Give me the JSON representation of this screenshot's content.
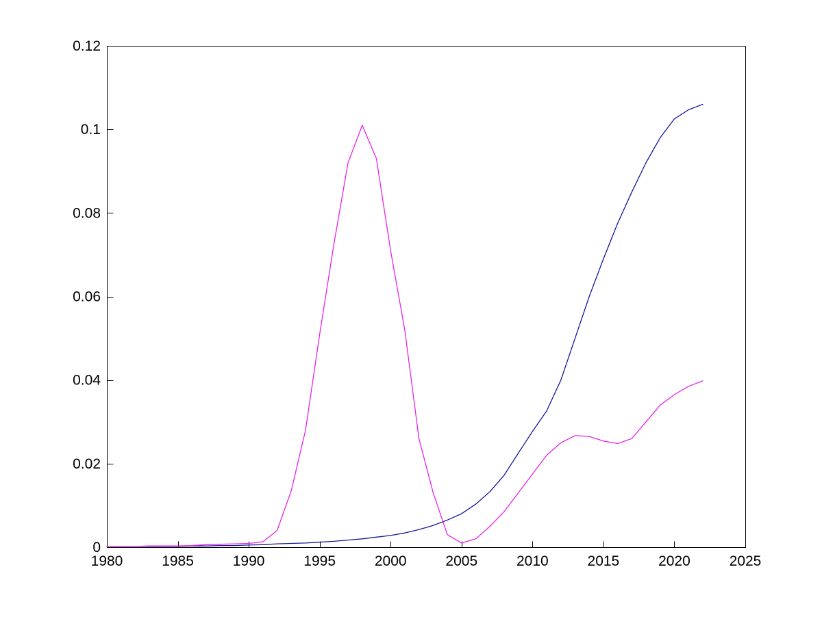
{
  "figure": {
    "background": "#ffffff",
    "plot_background": "#ffffff",
    "axis_color": "#000000",
    "tick_label_color": "#000000"
  },
  "chart_data": {
    "type": "line",
    "title": "",
    "xlabel": "",
    "ylabel": "",
    "grid": false,
    "legend": "none",
    "box": true,
    "tick_direction": "in",
    "xlim": [
      1980,
      2025
    ],
    "ylim": [
      0,
      0.12
    ],
    "x_ticks": [
      1980,
      1985,
      1990,
      1995,
      2000,
      2005,
      2010,
      2015,
      2020,
      2025
    ],
    "x_tick_labels": [
      "1980",
      "1985",
      "1990",
      "1995",
      "2000",
      "2005",
      "2010",
      "2015",
      "2020",
      "2025"
    ],
    "y_ticks": [
      0,
      0.02,
      0.04,
      0.06,
      0.08,
      0.1,
      0.12
    ],
    "y_tick_labels": [
      "0",
      "0.02",
      "0.04",
      "0.06",
      "0.08",
      "0.1",
      "0.12"
    ],
    "x": [
      1980,
      1981,
      1982,
      1983,
      1984,
      1985,
      1986,
      1987,
      1988,
      1989,
      1990,
      1991,
      1992,
      1993,
      1994,
      1995,
      1996,
      1997,
      1998,
      1999,
      2000,
      2001,
      2002,
      2003,
      2004,
      2005,
      2006,
      2007,
      2008,
      2009,
      2010,
      2011,
      2012,
      2013,
      2014,
      2015,
      2016,
      2017,
      2018,
      2019,
      2020,
      2021,
      2022
    ],
    "series": [
      {
        "name": "dark-blue-line",
        "color": "#16169a",
        "values": [
          0.0002,
          0.0002,
          0.0002,
          0.0002,
          0.0002,
          0.0002,
          0.0003,
          0.0003,
          0.0004,
          0.0004,
          0.0005,
          0.0006,
          0.0008,
          0.0009,
          0.001,
          0.0012,
          0.0014,
          0.0017,
          0.002,
          0.0024,
          0.0028,
          0.0034,
          0.0042,
          0.0052,
          0.0065,
          0.008,
          0.0103,
          0.0133,
          0.0172,
          0.0225,
          0.0277,
          0.0326,
          0.04,
          0.05,
          0.06,
          0.069,
          0.0775,
          0.085,
          0.092,
          0.098,
          0.1025,
          0.1047,
          0.106
        ]
      },
      {
        "name": "magenta-line",
        "color": "#e921e9",
        "values": [
          0.0002,
          0.0002,
          0.0002,
          0.0003,
          0.0003,
          0.0003,
          0.0004,
          0.0006,
          0.0007,
          0.0008,
          0.0009,
          0.0013,
          0.004,
          0.0135,
          0.028,
          0.051,
          0.0725,
          0.092,
          0.101,
          0.093,
          0.071,
          0.052,
          0.026,
          0.013,
          0.003,
          0.001,
          0.002,
          0.005,
          0.0085,
          0.013,
          0.0175,
          0.022,
          0.025,
          0.0267,
          0.0265,
          0.0254,
          0.0248,
          0.026,
          0.03,
          0.034,
          0.0365,
          0.0385,
          0.0398
        ]
      }
    ]
  }
}
